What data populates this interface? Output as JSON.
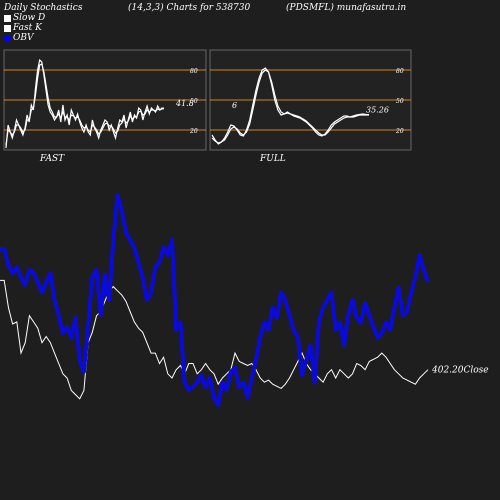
{
  "header": {
    "left": "Daily Stochastics",
    "params": "(14,3,3) Charts for 538730",
    "symbol": "(PDSMFL) munafasutra.in"
  },
  "legend": [
    {
      "label": "Slow  D",
      "color": "#ffffff",
      "style": "box"
    },
    {
      "label": "Fast K",
      "color": "#ffffff",
      "style": "box"
    },
    {
      "label": "OBV",
      "color": "#0000ff",
      "style": "dot"
    }
  ],
  "colors": {
    "background": "#1e1e1e",
    "panel": "#222222",
    "level": "#d2871e",
    "obv": "#0b0bd8",
    "price": "#ffffff"
  },
  "chart_data": [
    {
      "type": "line",
      "panel_label": "FAST",
      "ylim": [
        0,
        100
      ],
      "levels": [
        80,
        50,
        20
      ],
      "last_value_label": "41.8",
      "x": [
        0,
        1,
        2,
        3,
        4,
        5,
        6,
        7,
        8,
        9,
        10,
        11,
        12,
        13,
        14,
        15,
        16,
        17,
        18,
        19,
        20,
        21,
        22,
        23,
        24,
        25,
        26,
        27,
        28,
        29,
        30,
        31,
        32,
        33,
        34,
        35,
        36,
        37,
        38,
        39,
        40,
        41,
        42,
        43,
        44,
        45,
        46,
        47,
        48,
        49,
        50,
        51,
        52,
        53,
        54,
        55,
        56,
        57,
        58,
        59,
        60,
        61,
        62,
        63,
        64,
        65,
        66,
        67,
        68,
        69,
        70,
        71,
        72,
        73,
        74,
        75
      ],
      "series": [
        {
          "values": [
            2,
            25,
            18,
            12,
            20,
            30,
            25,
            20,
            15,
            22,
            35,
            28,
            45,
            40,
            62,
            80,
            90,
            88,
            75,
            60,
            45,
            38,
            35,
            30,
            33,
            40,
            28,
            45,
            30,
            35,
            25,
            40,
            35,
            30,
            36,
            28,
            22,
            18,
            25,
            18,
            15,
            30,
            22,
            18,
            12,
            20,
            25,
            30,
            28,
            20,
            25,
            18,
            12,
            22,
            30,
            28,
            35,
            22,
            30,
            38,
            28,
            35,
            32,
            42,
            40,
            30,
            38,
            44,
            36,
            42,
            40,
            38,
            44,
            40,
            42,
            41.8
          ]
        },
        {
          "values": [
            5,
            20,
            18,
            15,
            18,
            25,
            25,
            22,
            18,
            20,
            30,
            30,
            40,
            42,
            55,
            72,
            85,
            86,
            78,
            65,
            52,
            42,
            38,
            33,
            33,
            36,
            32,
            38,
            33,
            33,
            30,
            35,
            34,
            32,
            33,
            30,
            25,
            22,
            23,
            20,
            18,
            25,
            23,
            20,
            16,
            18,
            22,
            26,
            27,
            24,
            24,
            21,
            17,
            19,
            25,
            27,
            31,
            27,
            29,
            34,
            31,
            33,
            33,
            38,
            39,
            35,
            36,
            40,
            38,
            40,
            40,
            39,
            41,
            40,
            41,
            41.5
          ]
        }
      ]
    },
    {
      "type": "line",
      "panel_label": "FULL",
      "ylim": [
        0,
        100
      ],
      "levels": [
        80,
        50,
        20
      ],
      "last_value_label": "35.26",
      "inner_label": "6",
      "x": [
        0,
        1,
        2,
        3,
        4,
        5,
        6,
        7,
        8,
        9,
        10,
        11,
        12,
        13,
        14,
        15,
        16,
        17,
        18,
        19,
        20,
        21,
        22,
        23,
        24,
        25,
        26,
        27,
        28,
        29,
        30,
        31,
        32,
        33,
        34,
        35,
        36,
        37,
        38,
        39,
        40,
        41,
        42,
        43,
        44,
        45,
        46,
        47,
        48,
        49,
        50
      ],
      "series": [
        {
          "values": [
            15,
            10,
            6,
            8,
            12,
            18,
            25,
            24,
            20,
            15,
            14,
            20,
            30,
            45,
            60,
            72,
            80,
            82,
            78,
            65,
            50,
            40,
            35,
            36,
            38,
            36,
            34,
            33,
            32,
            30,
            28,
            25,
            22,
            18,
            15,
            14,
            16,
            20,
            25,
            28,
            30,
            32,
            34,
            34,
            33,
            34,
            35,
            35.5,
            36,
            35.5,
            35.26
          ]
        },
        {
          "values": [
            12,
            9,
            7,
            8,
            10,
            15,
            21,
            23,
            21,
            17,
            15,
            18,
            26,
            40,
            55,
            68,
            77,
            80,
            78,
            68,
            55,
            44,
            38,
            36,
            37,
            36,
            35,
            34,
            33,
            31,
            29,
            26,
            23,
            20,
            17,
            15,
            15,
            18,
            22,
            26,
            28,
            30,
            32,
            33,
            33,
            33,
            34,
            35,
            35,
            35,
            35
          ]
        }
      ]
    },
    {
      "type": "line",
      "last_price_label": "402.20",
      "close_label": "Close",
      "x": [
        0,
        1,
        2,
        3,
        4,
        5,
        6,
        7,
        8,
        9,
        10,
        11,
        12,
        13,
        14,
        15,
        16,
        17,
        18,
        19,
        20,
        21,
        22,
        23,
        24,
        25,
        26,
        27,
        28,
        29,
        30,
        31,
        32,
        33,
        34,
        35,
        36,
        37,
        38,
        39,
        40,
        41,
        42,
        43,
        44,
        45,
        46,
        47,
        48,
        49,
        50,
        51,
        52,
        53,
        54,
        55,
        56,
        57,
        58,
        59,
        60,
        61,
        62,
        63,
        64,
        65,
        66,
        67,
        68,
        69,
        70,
        71,
        72,
        73,
        74,
        75,
        76,
        77,
        78,
        79,
        80,
        81,
        82,
        83,
        84,
        85,
        86,
        87,
        88,
        89,
        90,
        91,
        92,
        93,
        94,
        95,
        96,
        97,
        98,
        99,
        100,
        101,
        102
      ],
      "series": [
        {
          "name": "OBV",
          "values": [
            74,
            74,
            63,
            58,
            62,
            55,
            50,
            60,
            58,
            52,
            45,
            52,
            58,
            40,
            30,
            18,
            22,
            15,
            28,
            0,
            -8,
            22,
            55,
            60,
            30,
            57,
            40,
            80,
            110,
            100,
            85,
            80,
            75,
            65,
            55,
            40,
            45,
            62,
            65,
            75,
            70,
            80,
            20,
            25,
            -15,
            -20,
            -18,
            -15,
            -10,
            -18,
            -12,
            -25,
            -30,
            -15,
            -20,
            -8,
            -5,
            -18,
            -15,
            -25,
            -12,
            0,
            15,
            25,
            20,
            35,
            28,
            45,
            40,
            30,
            20,
            15,
            -10,
            0,
            10,
            -15,
            25,
            35,
            40,
            45,
            20,
            25,
            10,
            30,
            40,
            28,
            25,
            38,
            30,
            22,
            15,
            18,
            25,
            20,
            35,
            48,
            30,
            32,
            45,
            55,
            70,
            60,
            52
          ]
        },
        {
          "name": "Price",
          "values": [
            95,
            95,
            82,
            74,
            75,
            60,
            65,
            78,
            75,
            72,
            65,
            68,
            65,
            60,
            55,
            50,
            48,
            42,
            40,
            38,
            42,
            65,
            70,
            78,
            80,
            85,
            90,
            92,
            90,
            88,
            85,
            80,
            75,
            72,
            70,
            65,
            60,
            60,
            55,
            58,
            50,
            48,
            52,
            54,
            50,
            55,
            55,
            50,
            52,
            55,
            52,
            50,
            45,
            48,
            50,
            52,
            60,
            56,
            55,
            54,
            55,
            52,
            48,
            46,
            47,
            45,
            44,
            43,
            45,
            48,
            52,
            56,
            60,
            55,
            52,
            50,
            48,
            46,
            50,
            52,
            48,
            52,
            50,
            48,
            50,
            55,
            54,
            52,
            56,
            57,
            58,
            60,
            58,
            55,
            52,
            50,
            48,
            47,
            46,
            45,
            48,
            50,
            52
          ]
        }
      ]
    }
  ]
}
